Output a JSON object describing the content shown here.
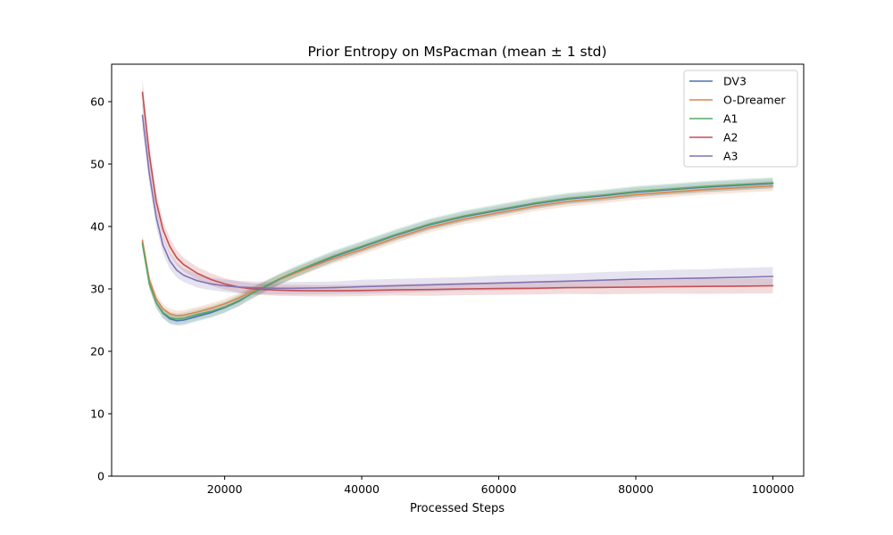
{
  "chart_data": {
    "type": "line",
    "title": "Prior Entropy on MsPacman (mean ± 1 std)",
    "xlabel": "Processed Steps",
    "ylabel": "",
    "xlim": [
      3500,
      104500
    ],
    "ylim": [
      0,
      66
    ],
    "xticks": [
      20000,
      40000,
      60000,
      80000,
      100000
    ],
    "yticks": [
      0,
      10,
      20,
      30,
      40,
      50,
      60
    ],
    "grid": false,
    "legend_position": "top-right",
    "band": "mean ± 1 std",
    "x": [
      8000,
      9000,
      10000,
      11000,
      12000,
      13000,
      14000,
      16000,
      18000,
      20000,
      22000,
      24000,
      26000,
      28000,
      30000,
      33000,
      36000,
      40000,
      45000,
      50000,
      55000,
      60000,
      65000,
      70000,
      75000,
      80000,
      85000,
      90000,
      95000,
      100000
    ],
    "series": [
      {
        "name": "DV3",
        "color": "#4c72b0",
        "values": [
          37.5,
          31.0,
          27.8,
          26.1,
          25.2,
          24.9,
          25.0,
          25.6,
          26.2,
          27.0,
          28.0,
          29.3,
          30.4,
          31.5,
          32.5,
          33.9,
          35.2,
          36.7,
          38.6,
          40.3,
          41.6,
          42.6,
          43.6,
          44.4,
          44.9,
          45.5,
          45.9,
          46.3,
          46.6,
          46.9
        ],
        "std": [
          0.8,
          0.8,
          0.8,
          0.8,
          0.8,
          0.8,
          0.8,
          0.8,
          0.8,
          0.8,
          0.8,
          0.8,
          0.8,
          0.8,
          0.8,
          0.8,
          0.8,
          0.8,
          0.8,
          0.8,
          0.8,
          0.8,
          0.8,
          0.8,
          0.8,
          0.8,
          0.8,
          0.8,
          0.8,
          0.8
        ]
      },
      {
        "name": "O-Dreamer",
        "color": "#dd8452",
        "values": [
          37.8,
          31.5,
          28.4,
          26.8,
          26.0,
          25.7,
          25.8,
          26.3,
          26.9,
          27.6,
          28.5,
          29.6,
          30.5,
          31.5,
          32.4,
          33.7,
          34.9,
          36.3,
          38.2,
          39.9,
          41.2,
          42.2,
          43.2,
          44.0,
          44.5,
          45.1,
          45.5,
          45.9,
          46.2,
          46.5
        ],
        "std": [
          0.8,
          0.8,
          0.8,
          0.8,
          0.8,
          0.8,
          0.8,
          0.8,
          0.8,
          0.8,
          0.8,
          0.8,
          0.8,
          0.8,
          0.8,
          0.8,
          0.8,
          0.8,
          0.8,
          0.8,
          0.8,
          0.8,
          0.8,
          0.8,
          0.8,
          0.8,
          0.8,
          0.8,
          0.8,
          0.8
        ]
      },
      {
        "name": "A1",
        "color": "#55a868",
        "values": [
          37.2,
          30.8,
          27.8,
          26.2,
          25.4,
          25.2,
          25.3,
          25.9,
          26.4,
          27.1,
          28.1,
          29.3,
          30.5,
          31.6,
          32.6,
          34.0,
          35.3,
          36.8,
          38.7,
          40.4,
          41.7,
          42.7,
          43.7,
          44.5,
          45.0,
          45.6,
          46.0,
          46.4,
          46.7,
          47.0
        ],
        "std": [
          0.9,
          0.9,
          0.9,
          0.9,
          0.9,
          0.9,
          0.9,
          0.9,
          0.9,
          0.9,
          0.9,
          0.9,
          0.9,
          0.9,
          0.9,
          0.9,
          0.9,
          0.9,
          0.9,
          0.9,
          0.9,
          0.9,
          0.9,
          0.9,
          0.9,
          0.9,
          0.9,
          0.9,
          0.9,
          0.9
        ]
      },
      {
        "name": "A2",
        "color": "#c44e52",
        "values": [
          61.5,
          51.5,
          44.0,
          39.5,
          36.8,
          35.0,
          33.9,
          32.5,
          31.5,
          30.8,
          30.3,
          30.0,
          29.9,
          29.8,
          29.75,
          29.7,
          29.7,
          29.75,
          29.85,
          29.9,
          30.0,
          30.05,
          30.1,
          30.2,
          30.25,
          30.3,
          30.35,
          30.4,
          30.45,
          30.5
        ],
        "std": [
          2.2,
          1.8,
          1.6,
          1.4,
          1.3,
          1.2,
          1.1,
          1.0,
          1.0,
          0.9,
          0.9,
          0.9,
          0.9,
          0.9,
          0.9,
          0.9,
          0.9,
          0.9,
          0.9,
          1.0,
          1.0,
          1.0,
          1.0,
          1.0,
          1.1,
          1.1,
          1.1,
          1.2,
          1.2,
          1.2
        ]
      },
      {
        "name": "A3",
        "color": "#8172b2",
        "values": [
          57.8,
          48.5,
          41.5,
          37.0,
          34.5,
          33.0,
          32.2,
          31.3,
          30.8,
          30.5,
          30.3,
          30.2,
          30.15,
          30.1,
          30.1,
          30.15,
          30.2,
          30.35,
          30.5,
          30.65,
          30.8,
          30.95,
          31.1,
          31.25,
          31.4,
          31.55,
          31.65,
          31.75,
          31.85,
          32.0
        ],
        "std": [
          2.2,
          1.8,
          1.6,
          1.4,
          1.3,
          1.2,
          1.1,
          1.1,
          1.0,
          1.0,
          1.0,
          1.0,
          1.0,
          1.0,
          1.0,
          1.0,
          1.0,
          1.1,
          1.1,
          1.1,
          1.1,
          1.2,
          1.2,
          1.2,
          1.3,
          1.3,
          1.4,
          1.4,
          1.5,
          1.5
        ]
      }
    ]
  }
}
